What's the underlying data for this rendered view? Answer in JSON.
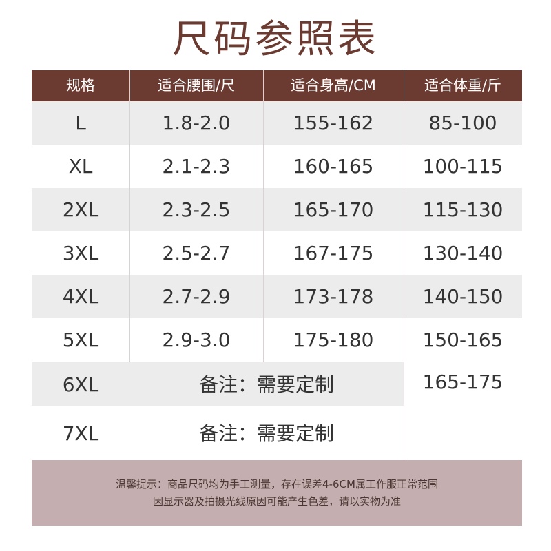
{
  "title": "尺码参照表",
  "colors": {
    "header_bg": "#6b3b32",
    "title_color": "#6b3b32",
    "shade_row": "#ececec",
    "note_bg": "#c4aeaf"
  },
  "table": {
    "headers": [
      "规格",
      "适合腰围/尺",
      "适合身高/CM",
      "适合体重/斤"
    ],
    "rows": [
      {
        "size": "L",
        "waist": "1.8-2.0",
        "height": "155-162",
        "weight": "85-100"
      },
      {
        "size": "XL",
        "waist": "2.1-2.3",
        "height": "160-165",
        "weight": "100-115"
      },
      {
        "size": "2XL",
        "waist": "2.3-2.5",
        "height": "165-170",
        "weight": "115-130"
      },
      {
        "size": "3XL",
        "waist": "2.5-2.7",
        "height": "167-175",
        "weight": "130-140"
      },
      {
        "size": "4XL",
        "waist": "2.7-2.9",
        "height": "173-178",
        "weight": "140-150"
      },
      {
        "size": "5XL",
        "waist": "2.9-3.0",
        "height": "175-180",
        "weight": "150-165"
      }
    ],
    "custom_rows": [
      {
        "size": "6XL",
        "note": "备注：需要定制",
        "weight": "165-175"
      },
      {
        "size": "7XL",
        "note": "备注：需要定制",
        "weight": ""
      }
    ]
  },
  "notice": {
    "line1": "温馨提示：商品尺码均为手工测量，存在误差4-6CM属工作服正常范围",
    "line2": "因显示器及拍摄光线原因可能产生色差，请以实物为准"
  }
}
